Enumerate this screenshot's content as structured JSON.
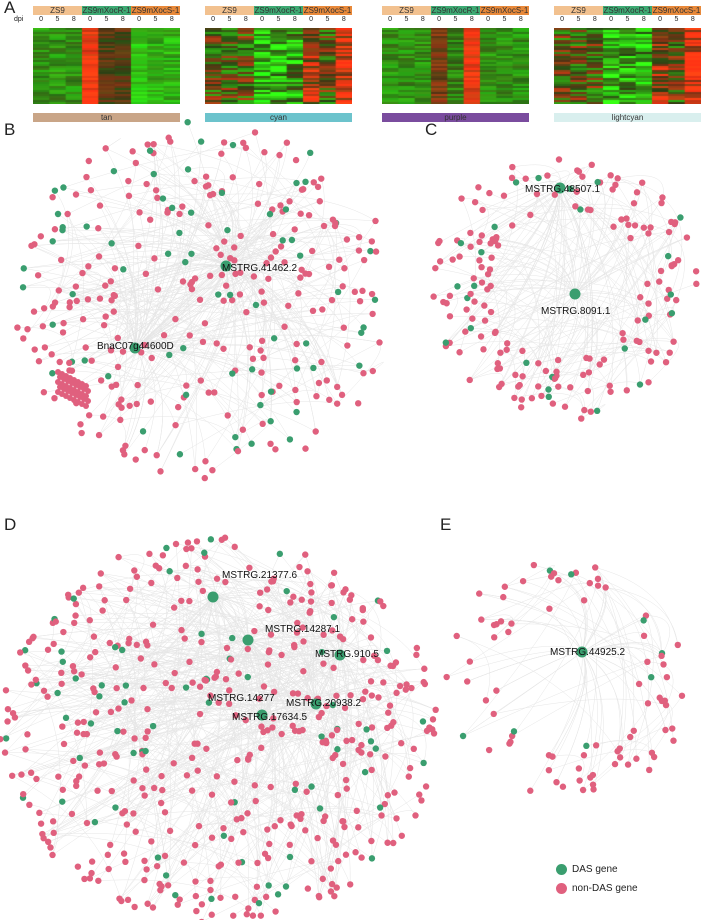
{
  "panels": {
    "a": "A",
    "b": "B",
    "c": "C",
    "d": "D",
    "e": "E"
  },
  "heatmap": {
    "dpi_label": "dpi",
    "groups": [
      "ZS9",
      "ZS9mXocR-1",
      "ZS9mXocS-1"
    ],
    "group_colors": [
      "#f2c18f",
      "#3daa73",
      "#e8893a"
    ],
    "timepoints": [
      "0",
      "5",
      "8"
    ],
    "modules": [
      {
        "name": "tan",
        "color": "#c9a587"
      },
      {
        "name": "cyan",
        "color": "#6cc3cc"
      },
      {
        "name": "purple",
        "color": "#7a4c9e"
      },
      {
        "name": "lightcyan",
        "color": "#d9efee"
      }
    ]
  },
  "networks": {
    "b": {
      "labels": [
        "MSTRG.41462.2",
        "BnaC07g44600D"
      ]
    },
    "c": {
      "labels": [
        "MSTRG.48507.1",
        "MSTRG.8091.1"
      ]
    },
    "d": {
      "labels": [
        "MSTRG.21377.6",
        "MSTRG.14287.1",
        "MSTRG.910.5",
        "MSTRG.14277",
        "MSTRG.20938.2",
        "MSTRG.17634.5"
      ]
    },
    "e": {
      "labels": [
        "MSTRG.44925.2"
      ]
    }
  },
  "legend": {
    "das": "DAS gene",
    "non_das": "non-DAS gene",
    "das_color": "#3a9e6f",
    "non_das_color": "#e0607e"
  }
}
